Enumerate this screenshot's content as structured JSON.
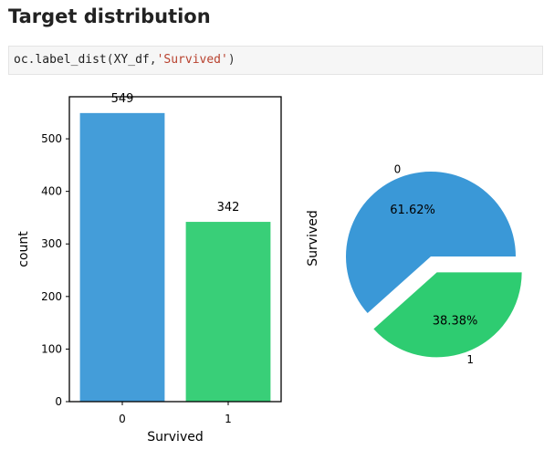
{
  "heading": "Target distribution",
  "code": {
    "obj": "oc",
    "dot": ".",
    "func": "label_dist",
    "open": "(",
    "arg1": "XY_df",
    "comma": ",",
    "arg2": "'Survived'",
    "close": ")"
  },
  "colors": {
    "class_0": "#3a98d7",
    "class_1": "#2ecc71",
    "axis": "#000000"
  },
  "chart_data": [
    {
      "type": "bar",
      "categories": [
        "0",
        "1"
      ],
      "values": [
        549,
        342
      ],
      "data_labels": [
        "549",
        "342"
      ],
      "xlabel": "Survived",
      "ylabel": "count",
      "ylim": [
        0,
        580
      ],
      "yticks": [
        0,
        100,
        200,
        300,
        400,
        500
      ],
      "grid": false
    },
    {
      "type": "pie",
      "labels": [
        "0",
        "1"
      ],
      "values": [
        61.62,
        38.38
      ],
      "pct_labels": [
        "61.62%",
        "38.38%"
      ],
      "ylabel": "Survived",
      "explode": [
        0,
        0.2
      ]
    }
  ]
}
